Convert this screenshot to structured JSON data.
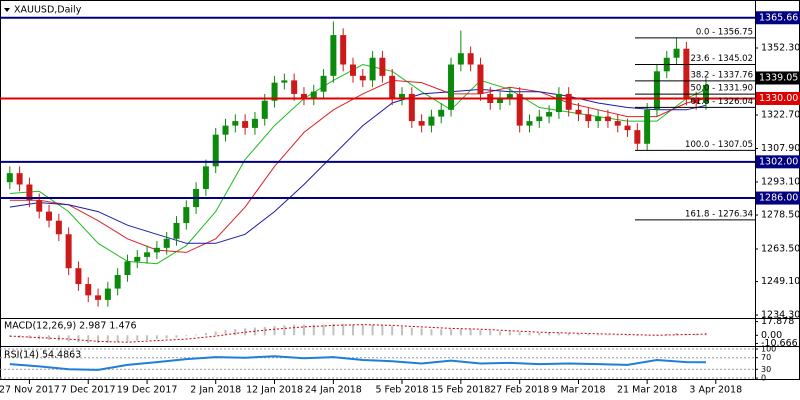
{
  "chart_data": [
    {
      "type": "candlestick",
      "title": "XAUUSD,Daily",
      "up_color": "#0b8a0b",
      "down_color": "#cc1a1a",
      "xlim": [
        -1,
        76
      ],
      "ylim": [
        1233,
        1371.3
      ],
      "xticks": [
        {
          "value": 2,
          "label": "27 Nov 2017"
        },
        {
          "value": 8,
          "label": "7 Dec 2017"
        },
        {
          "value": 14,
          "label": "19 Dec 2017"
        },
        {
          "value": 21,
          "label": "2 Jan 2018"
        },
        {
          "value": 27,
          "label": "12 Jan 2018"
        },
        {
          "value": 33,
          "label": "24 Jan 2018"
        },
        {
          "value": 40,
          "label": "5 Feb 2018"
        },
        {
          "value": 46,
          "label": "15 Feb 2018"
        },
        {
          "value": 52,
          "label": "27 Feb 2018"
        },
        {
          "value": 58,
          "label": "9 Mar 2018"
        },
        {
          "value": 65,
          "label": "21 Mar 2018"
        },
        {
          "value": 72,
          "label": "3 Apr 2018"
        }
      ],
      "yticks": [
        {
          "value": 1352.3,
          "label": "1352.30"
        },
        {
          "value": 1322.7,
          "label": "1322.70"
        },
        {
          "value": 1307.9,
          "label": "1307.90"
        },
        {
          "value": 1293.1,
          "label": "1293.10"
        },
        {
          "value": 1278.5,
          "label": "1278.50"
        },
        {
          "value": 1263.5,
          "label": "1263.50"
        },
        {
          "value": 1249.1,
          "label": "1249.10"
        },
        {
          "value": 1234.3,
          "label": "1234.30"
        }
      ],
      "open": [
        1293,
        1297,
        1292,
        1285,
        1280,
        1276,
        1270,
        1255,
        1248,
        1243,
        1241,
        1246,
        1252,
        1258,
        1260,
        1262,
        1264,
        1268,
        1275,
        1282,
        1290,
        1300,
        1314,
        1318,
        1320,
        1317,
        1321,
        1329,
        1337,
        1338,
        1332,
        1330,
        1333,
        1340,
        1358,
        1345,
        1340,
        1338,
        1348,
        1340,
        1330,
        1332,
        1320,
        1318,
        1322,
        1325,
        1345,
        1350,
        1345,
        1332,
        1328,
        1330,
        1332,
        1318,
        1320,
        1322,
        1324,
        1332,
        1325,
        1323,
        1320,
        1322,
        1320,
        1318,
        1316,
        1310,
        1325,
        1342,
        1348,
        1352,
        1330,
        1328
      ],
      "high": [
        1300,
        1300,
        1295,
        1288,
        1283,
        1279,
        1273,
        1258,
        1251,
        1246,
        1249,
        1255,
        1261,
        1263,
        1265,
        1267,
        1271,
        1278,
        1285,
        1293,
        1303,
        1317,
        1321,
        1323,
        1323,
        1324,
        1332,
        1340,
        1341,
        1341,
        1335,
        1336,
        1343,
        1364,
        1361,
        1348,
        1343,
        1351,
        1351,
        1343,
        1335,
        1335,
        1323,
        1325,
        1328,
        1348,
        1360,
        1353,
        1348,
        1335,
        1333,
        1335,
        1335,
        1323,
        1325,
        1327,
        1335,
        1335,
        1328,
        1326,
        1325,
        1325,
        1323,
        1321,
        1319,
        1328,
        1345,
        1351,
        1357,
        1355,
        1333,
        1339
      ],
      "low": [
        1290,
        1289,
        1282,
        1277,
        1273,
        1267,
        1252,
        1245,
        1240,
        1238,
        1238,
        1243,
        1249,
        1255,
        1257,
        1259,
        1261,
        1265,
        1272,
        1279,
        1287,
        1297,
        1311,
        1315,
        1314,
        1314,
        1318,
        1326,
        1334,
        1329,
        1327,
        1327,
        1330,
        1337,
        1342,
        1337,
        1335,
        1335,
        1337,
        1327,
        1327,
        1317,
        1315,
        1315,
        1319,
        1322,
        1342,
        1342,
        1329,
        1325,
        1325,
        1327,
        1315,
        1315,
        1317,
        1319,
        1321,
        1322,
        1320,
        1317,
        1317,
        1317,
        1315,
        1313,
        1307,
        1307,
        1322,
        1339,
        1345,
        1327,
        1325,
        1325
      ],
      "close": [
        1297,
        1292,
        1285,
        1280,
        1276,
        1270,
        1255,
        1248,
        1243,
        1241,
        1246,
        1252,
        1258,
        1260,
        1262,
        1264,
        1268,
        1275,
        1282,
        1290,
        1300,
        1314,
        1318,
        1320,
        1317,
        1321,
        1329,
        1337,
        1338,
        1332,
        1330,
        1333,
        1340,
        1358,
        1345,
        1340,
        1338,
        1348,
        1340,
        1330,
        1332,
        1320,
        1318,
        1322,
        1325,
        1345,
        1350,
        1345,
        1332,
        1328,
        1330,
        1332,
        1318,
        1320,
        1322,
        1324,
        1332,
        1325,
        1323,
        1320,
        1322,
        1320,
        1318,
        1316,
        1310,
        1325,
        1342,
        1348,
        1352,
        1330,
        1328,
        1336
      ],
      "series": [
        {
          "color": "#22bb22",
          "x": [
            0,
            3,
            6,
            9,
            12,
            15,
            18,
            21,
            24,
            27,
            30,
            33,
            36,
            39,
            42,
            45,
            48,
            51,
            54,
            57,
            60,
            63,
            66,
            69,
            71
          ],
          "values": [
            1288,
            1289,
            1280,
            1266,
            1258,
            1257,
            1265,
            1280,
            1303,
            1318,
            1330,
            1338,
            1345,
            1342,
            1333,
            1325,
            1338,
            1334,
            1326,
            1324,
            1322,
            1320,
            1320,
            1330,
            1334
          ]
        },
        {
          "color": "#dd2222",
          "x": [
            0,
            3,
            6,
            9,
            12,
            15,
            18,
            21,
            24,
            27,
            30,
            33,
            36,
            39,
            42,
            45,
            48,
            51,
            54,
            57,
            60,
            63,
            66,
            69,
            71
          ],
          "values": [
            1285,
            1285,
            1283,
            1276,
            1268,
            1263,
            1262,
            1268,
            1282,
            1300,
            1315,
            1325,
            1332,
            1338,
            1337,
            1332,
            1332,
            1335,
            1333,
            1328,
            1325,
            1322,
            1322,
            1328,
            1330
          ]
        },
        {
          "color": "#1a1aaa",
          "x": [
            0,
            3,
            6,
            9,
            12,
            15,
            18,
            21,
            24,
            27,
            30,
            33,
            36,
            39,
            42,
            45,
            48,
            51,
            54,
            57,
            60,
            63,
            66,
            69,
            71
          ],
          "values": [
            1282,
            1284,
            1283,
            1280,
            1274,
            1270,
            1266,
            1266,
            1270,
            1280,
            1292,
            1305,
            1318,
            1328,
            1332,
            1333,
            1334,
            1333,
            1333,
            1331,
            1328,
            1326,
            1325,
            1325,
            1327
          ]
        }
      ],
      "levels": [
        {
          "value": 1365.66,
          "label": "1365.66",
          "color": "#000080"
        },
        {
          "value": 1330,
          "label": "1330.00",
          "color": "#dd0000"
        },
        {
          "value": 1302,
          "label": "1302.00",
          "color": "#000080"
        },
        {
          "value": 1286,
          "label": "1286.00",
          "color": "#000080"
        }
      ],
      "last_price": {
        "value": 1339.05,
        "label": "1339.05",
        "color": "#000000"
      },
      "fib_levels": [
        {
          "value": 1356.75,
          "label": "0.0 - 1356.75"
        },
        {
          "value": 1345.02,
          "label": "23.6 - 1345.02"
        },
        {
          "value": 1337.76,
          "label": "38.2 - 1337.76"
        },
        {
          "value": 1331.9,
          "label": "50.0 - 1331.90"
        },
        {
          "value": 1326.04,
          "label": "61.8 - 1326.04"
        },
        {
          "value": 1307.05,
          "label": "100.0 - 1307.05"
        },
        {
          "value": 1276.34,
          "label": "161.8 - 1276.34"
        }
      ]
    },
    {
      "type": "macd",
      "title": "MACD(12,26,9) 2.987 1.476",
      "color": "#c0c0c0",
      "signal_color": "#cc0000",
      "ylim": [
        -14,
        20
      ],
      "yticks": [
        17.878,
        {
          "value": 0,
          "label": "0.00"
        },
        -10.666
      ],
      "values": [
        -2,
        -3,
        -4,
        -5,
        -6,
        -7,
        -8,
        -9,
        -10,
        -10,
        -10,
        -9,
        -8,
        -7,
        -6,
        -5,
        -4,
        -3,
        -1,
        1,
        3,
        5,
        7,
        8,
        9,
        10,
        11,
        12,
        13,
        14,
        14,
        14,
        14,
        15,
        15,
        14,
        14,
        14,
        13,
        12,
        11,
        10,
        9,
        8,
        8,
        8,
        8,
        8,
        7,
        6,
        5,
        5,
        4,
        3,
        3,
        3,
        3,
        3,
        2,
        2,
        1,
        1,
        0,
        -1,
        -1,
        0,
        1,
        2,
        3,
        2,
        2,
        3
      ],
      "signal": {
        "x": [
          0,
          3,
          6,
          9,
          12,
          15,
          18,
          21,
          24,
          27,
          30,
          33,
          36,
          39,
          42,
          45,
          48,
          51,
          54,
          57,
          60,
          63,
          66,
          69,
          71
        ],
        "values": [
          -1,
          -3,
          -5,
          -8,
          -9,
          -7,
          -5,
          -1,
          4,
          8,
          11,
          13,
          14,
          13,
          11,
          9,
          8,
          6,
          4,
          3,
          2,
          1,
          0,
          1,
          1.5
        ]
      }
    },
    {
      "type": "rsi",
      "title": "RSI(14) 54.4863",
      "color": "#1e7fd8",
      "ylim": [
        0,
        100
      ],
      "yticks": [
        100,
        70,
        30,
        0
      ],
      "x": [
        0,
        3,
        6,
        9,
        12,
        15,
        18,
        21,
        24,
        27,
        30,
        33,
        36,
        39,
        42,
        45,
        48,
        51,
        54,
        57,
        60,
        63,
        66,
        69,
        71
      ],
      "values": [
        48,
        40,
        30,
        28,
        45,
        55,
        65,
        72,
        70,
        75,
        68,
        72,
        62,
        58,
        50,
        60,
        50,
        52,
        48,
        50,
        48,
        45,
        62,
        55,
        54.4863
      ]
    }
  ]
}
